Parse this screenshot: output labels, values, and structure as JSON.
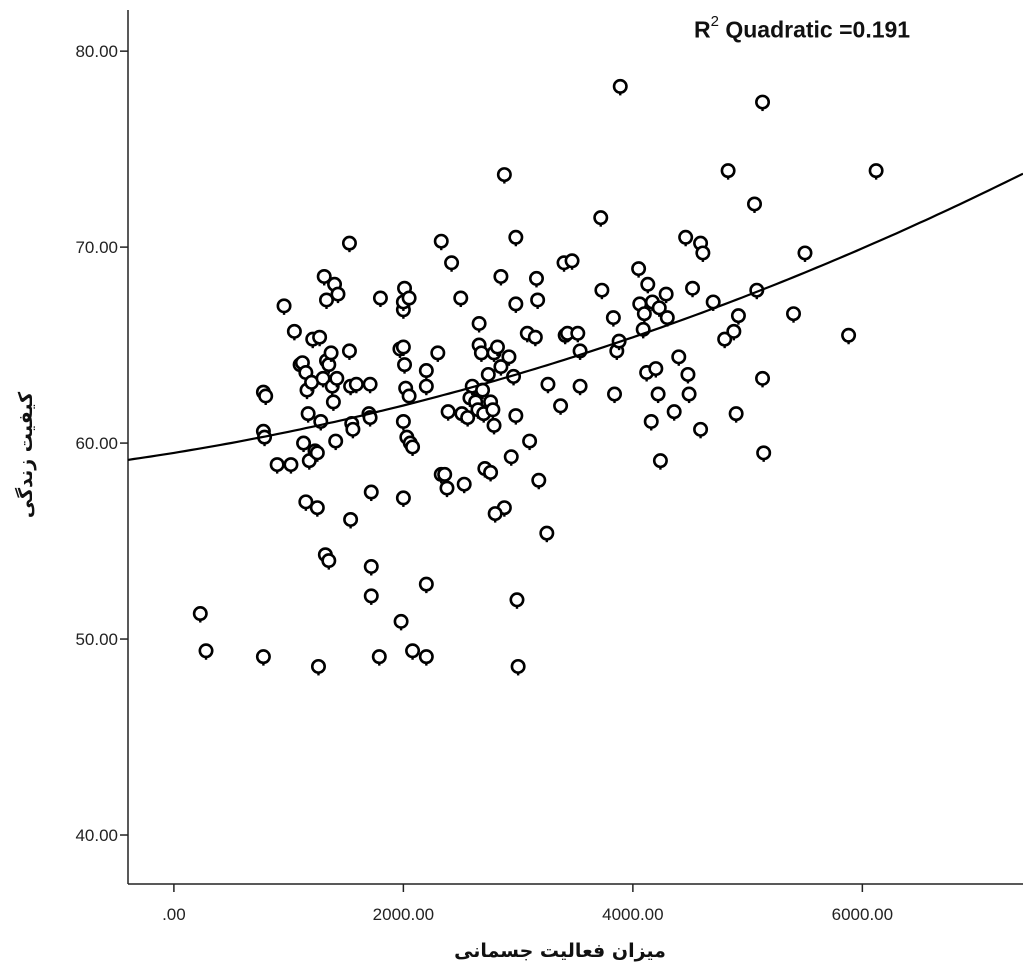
{
  "chart_data": {
    "type": "scatter",
    "title": "",
    "xlabel": "میزان فعالیت جسمانی",
    "ylabel": "کیفیت زندگی",
    "xlim": [
      -400,
      7400
    ],
    "ylim": [
      37.5,
      82.1
    ],
    "x_ticks": [
      0,
      2000,
      4000,
      6000
    ],
    "x_tick_labels": [
      ".00",
      "2000.00",
      "4000.00",
      "6000.00"
    ],
    "y_ticks": [
      40,
      50,
      60,
      70,
      80
    ],
    "y_tick_labels": [
      "40.00",
      "50.00",
      "60.00",
      "70.00",
      "80.00"
    ],
    "grid": false,
    "fit": {
      "type": "quadratic",
      "r2_label": "R",
      "r2_sup": "2",
      "r2_text": "Quadratic =0.191",
      "coefficients": [
        59.5,
        0.000945,
        1.325e-07
      ]
    },
    "points": [
      [
        230,
        51.2
      ],
      [
        280,
        49.3
      ],
      [
        780,
        62.5
      ],
      [
        800,
        62.3
      ],
      [
        780,
        60.5
      ],
      [
        790,
        60.2
      ],
      [
        780,
        49.0
      ],
      [
        900,
        58.8
      ],
      [
        960,
        66.9
      ],
      [
        1020,
        58.8
      ],
      [
        1050,
        65.6
      ],
      [
        1100,
        63.9
      ],
      [
        1120,
        64.0
      ],
      [
        1130,
        59.9
      ],
      [
        1150,
        63.5
      ],
      [
        1160,
        62.6
      ],
      [
        1170,
        61.4
      ],
      [
        1180,
        59.0
      ],
      [
        1150,
        56.9
      ],
      [
        1200,
        63.0
      ],
      [
        1210,
        65.2
      ],
      [
        1230,
        59.5
      ],
      [
        1250,
        59.4
      ],
      [
        1250,
        56.6
      ],
      [
        1260,
        48.5
      ],
      [
        1270,
        65.3
      ],
      [
        1280,
        61.0
      ],
      [
        1300,
        63.2
      ],
      [
        1310,
        68.4
      ],
      [
        1320,
        54.2
      ],
      [
        1330,
        64.1
      ],
      [
        1330,
        67.2
      ],
      [
        1350,
        63.9
      ],
      [
        1350,
        53.9
      ],
      [
        1370,
        64.5
      ],
      [
        1380,
        62.8
      ],
      [
        1390,
        62.0
      ],
      [
        1400,
        68.0
      ],
      [
        1420,
        63.2
      ],
      [
        1430,
        67.5
      ],
      [
        1410,
        60.0
      ],
      [
        1530,
        70.1
      ],
      [
        1530,
        64.6
      ],
      [
        1540,
        62.8
      ],
      [
        1550,
        60.9
      ],
      [
        1560,
        60.6
      ],
      [
        1540,
        56.0
      ],
      [
        1590,
        62.9
      ],
      [
        1700,
        61.4
      ],
      [
        1710,
        61.2
      ],
      [
        1710,
        62.9
      ],
      [
        1720,
        57.4
      ],
      [
        1720,
        53.6
      ],
      [
        1720,
        52.1
      ],
      [
        1790,
        49.0
      ],
      [
        1800,
        67.3
      ],
      [
        1970,
        64.7
      ],
      [
        2000,
        64.8
      ],
      [
        2000,
        66.7
      ],
      [
        2000,
        67.1
      ],
      [
        2010,
        67.8
      ],
      [
        2010,
        63.9
      ],
      [
        2000,
        61.0
      ],
      [
        2020,
        62.7
      ],
      [
        2030,
        60.2
      ],
      [
        2050,
        67.3
      ],
      [
        2050,
        62.3
      ],
      [
        2060,
        59.9
      ],
      [
        2080,
        59.7
      ],
      [
        2000,
        57.1
      ],
      [
        1980,
        50.8
      ],
      [
        2080,
        49.3
      ],
      [
        2200,
        63.6
      ],
      [
        2200,
        62.8
      ],
      [
        2200,
        52.7
      ],
      [
        2200,
        49.0
      ],
      [
        2300,
        64.5
      ],
      [
        2330,
        70.2
      ],
      [
        2330,
        58.3
      ],
      [
        2360,
        58.3
      ],
      [
        2380,
        57.6
      ],
      [
        2390,
        61.5
      ],
      [
        2420,
        69.1
      ],
      [
        2500,
        67.3
      ],
      [
        2510,
        61.4
      ],
      [
        2530,
        57.8
      ],
      [
        2560,
        61.2
      ],
      [
        2580,
        62.2
      ],
      [
        2600,
        62.8
      ],
      [
        2630,
        62.0
      ],
      [
        2650,
        61.6
      ],
      [
        2660,
        66.0
      ],
      [
        2660,
        64.9
      ],
      [
        2680,
        64.5
      ],
      [
        2690,
        62.6
      ],
      [
        2700,
        61.4
      ],
      [
        2710,
        58.6
      ],
      [
        2740,
        63.4
      ],
      [
        2760,
        62.0
      ],
      [
        2780,
        61.6
      ],
      [
        2790,
        60.8
      ],
      [
        2760,
        58.4
      ],
      [
        2790,
        64.5
      ],
      [
        2820,
        64.8
      ],
      [
        2850,
        63.8
      ],
      [
        2850,
        68.4
      ],
      [
        2880,
        73.6
      ],
      [
        2880,
        56.6
      ],
      [
        2800,
        56.3
      ],
      [
        2920,
        64.3
      ],
      [
        2940,
        59.2
      ],
      [
        2960,
        63.3
      ],
      [
        2980,
        70.4
      ],
      [
        2980,
        67.0
      ],
      [
        2980,
        61.3
      ],
      [
        2990,
        51.9
      ],
      [
        3000,
        48.5
      ],
      [
        3080,
        65.5
      ],
      [
        3100,
        60.0
      ],
      [
        3150,
        65.3
      ],
      [
        3160,
        68.3
      ],
      [
        3170,
        67.2
      ],
      [
        3180,
        58.0
      ],
      [
        3250,
        55.3
      ],
      [
        3260,
        62.9
      ],
      [
        3370,
        61.8
      ],
      [
        3400,
        69.1
      ],
      [
        3410,
        65.4
      ],
      [
        3430,
        65.5
      ],
      [
        3470,
        69.2
      ],
      [
        3520,
        65.5
      ],
      [
        3540,
        64.6
      ],
      [
        3540,
        62.8
      ],
      [
        3720,
        71.4
      ],
      [
        3730,
        67.7
      ],
      [
        3830,
        66.3
      ],
      [
        3840,
        62.4
      ],
      [
        3860,
        64.6
      ],
      [
        3880,
        65.1
      ],
      [
        3890,
        78.1
      ],
      [
        4050,
        68.8
      ],
      [
        4060,
        67.0
      ],
      [
        4090,
        65.7
      ],
      [
        4100,
        66.5
      ],
      [
        4120,
        63.5
      ],
      [
        4130,
        68.0
      ],
      [
        4160,
        61.0
      ],
      [
        4170,
        67.1
      ],
      [
        4200,
        63.7
      ],
      [
        4220,
        62.4
      ],
      [
        4230,
        66.8
      ],
      [
        4240,
        59.0
      ],
      [
        4290,
        67.5
      ],
      [
        4300,
        66.3
      ],
      [
        4360,
        61.5
      ],
      [
        4400,
        64.3
      ],
      [
        4460,
        70.4
      ],
      [
        4480,
        63.4
      ],
      [
        4490,
        62.4
      ],
      [
        4520,
        67.8
      ],
      [
        4590,
        70.1
      ],
      [
        4590,
        60.6
      ],
      [
        4610,
        69.6
      ],
      [
        4700,
        67.1
      ],
      [
        4800,
        65.2
      ],
      [
        4830,
        73.8
      ],
      [
        4880,
        65.6
      ],
      [
        4900,
        61.4
      ],
      [
        4920,
        66.4
      ],
      [
        5060,
        72.1
      ],
      [
        5080,
        67.7
      ],
      [
        5130,
        77.3
      ],
      [
        5130,
        63.2
      ],
      [
        5140,
        59.4
      ],
      [
        5400,
        66.5
      ],
      [
        5500,
        69.6
      ],
      [
        5880,
        65.4
      ],
      [
        6120,
        73.8
      ]
    ]
  }
}
